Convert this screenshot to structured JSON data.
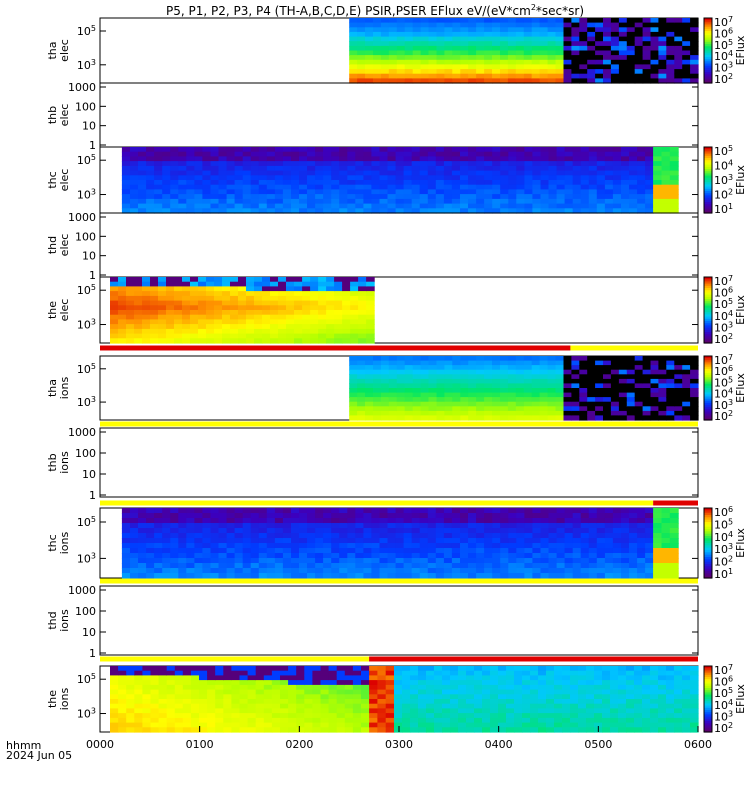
{
  "title": {
    "prefix": "P5, P1, P2, P3, P4 (TH-A,B,C,D,E) PSIR,PSER EFlux eV/(eV*cm",
    "exp": "2",
    "suffix": "*sec*sr)"
  },
  "chart_data": {
    "type": "heatmap",
    "x_unit": "hhmm",
    "date": "2024 Jun 05",
    "xticks": [
      "0000",
      "0100",
      "0200",
      "0300",
      "0400",
      "0500",
      "0600"
    ],
    "xlim": [
      0,
      6
    ],
    "colormap": "rainbow (purple-blue-cyan-green-yellow-orange-red)",
    "panels": [
      {
        "probe": "tha",
        "species": "elec",
        "label": [
          "tha",
          "elec"
        ],
        "yscale": "log",
        "yticks": [
          "10^5",
          "10^3"
        ],
        "has_data": true,
        "cbar_label": "EFlux",
        "cbar_ticks": [
          "10^7",
          "10^6",
          "10^5",
          "10^4",
          "10^3",
          "10^2"
        ],
        "segments": [
          {
            "start": 0.0,
            "end": 2.5,
            "status": "no data"
          },
          {
            "start": 2.5,
            "end": 4.65,
            "status": "spectrogram"
          },
          {
            "start": 4.65,
            "end": 6.0,
            "status": "sparse"
          }
        ]
      },
      {
        "probe": "thb",
        "species": "elec",
        "label": [
          "thb",
          "elec"
        ],
        "yscale": "log",
        "yticks": [
          "1000",
          "100",
          "10",
          "1"
        ],
        "has_data": false
      },
      {
        "probe": "thc",
        "species": "elec",
        "label": [
          "thc",
          "elec"
        ],
        "yscale": "log",
        "yticks": [
          "10^5",
          "10^3"
        ],
        "has_data": true,
        "cbar_label": "EFlux",
        "cbar_ticks": [
          "10^5",
          "10^4",
          "10^3",
          "10^2",
          "10^1"
        ],
        "segments": [
          {
            "start": 0.0,
            "end": 0.22,
            "status": "no data"
          },
          {
            "start": 0.22,
            "end": 5.55,
            "status": "spectrogram"
          },
          {
            "start": 5.55,
            "end": 5.8,
            "status": "burst"
          }
        ]
      },
      {
        "probe": "thd",
        "species": "elec",
        "label": [
          "thd",
          "elec"
        ],
        "yscale": "log",
        "yticks": [
          "1000",
          "100",
          "10",
          "1"
        ],
        "has_data": false
      },
      {
        "probe": "the",
        "species": "elec",
        "label": [
          "the",
          "elec"
        ],
        "yscale": "log",
        "yticks": [
          "10^5",
          "10^3"
        ],
        "has_data": true,
        "cbar_label": "EFlux",
        "cbar_ticks": [
          "10^7",
          "10^6",
          "10^5",
          "10^4",
          "10^3",
          "10^2"
        ],
        "segments": [
          {
            "start": 0.1,
            "end": 2.75,
            "status": "spectrogram"
          }
        ]
      },
      {
        "probe": "tha",
        "species": "ions",
        "label": [
          "tha",
          "ions"
        ],
        "yscale": "log",
        "yticks": [
          "10^5",
          "10^3"
        ],
        "has_data": true,
        "cbar_label": "EFlux",
        "cbar_ticks": [
          "10^7",
          "10^6",
          "10^5",
          "10^4",
          "10^3",
          "10^2"
        ],
        "segments": [
          {
            "start": 2.5,
            "end": 4.65,
            "status": "spectrogram"
          },
          {
            "start": 4.65,
            "end": 6.0,
            "status": "sparse"
          }
        ]
      },
      {
        "probe": "thb",
        "species": "ions",
        "label": [
          "thb",
          "ions"
        ],
        "yscale": "log",
        "yticks": [
          "1000",
          "100",
          "10",
          "1"
        ],
        "has_data": false
      },
      {
        "probe": "thc",
        "species": "ions",
        "label": [
          "thc",
          "ions"
        ],
        "yscale": "log",
        "yticks": [
          "10^5",
          "10^3"
        ],
        "has_data": true,
        "cbar_label": "EFlux",
        "cbar_ticks": [
          "10^6",
          "10^5",
          "10^4",
          "10^3",
          "10^2",
          "10^1"
        ],
        "segments": [
          {
            "start": 0.22,
            "end": 5.55,
            "status": "spectrogram"
          },
          {
            "start": 5.55,
            "end": 5.8,
            "status": "burst"
          }
        ]
      },
      {
        "probe": "thd",
        "species": "ions",
        "label": [
          "thd",
          "ions"
        ],
        "yscale": "log",
        "yticks": [
          "1000",
          "100",
          "10",
          "1"
        ],
        "has_data": false
      },
      {
        "probe": "the",
        "species": "ions",
        "label": [
          "the",
          "ions"
        ],
        "yscale": "log",
        "yticks": [
          "10^5",
          "10^3"
        ],
        "has_data": true,
        "cbar_label": "EFlux",
        "cbar_ticks": [
          "10^7",
          "10^6",
          "10^5",
          "10^4",
          "10^3",
          "10^2"
        ],
        "segments": [
          {
            "start": 0.1,
            "end": 2.7,
            "status": "spectrogram"
          },
          {
            "start": 2.7,
            "end": 2.95,
            "status": "burst"
          },
          {
            "start": 2.95,
            "end": 6.0,
            "status": "spectrogram"
          }
        ]
      }
    ],
    "mode_bars": [
      {
        "after_panel": 4,
        "segments": [
          {
            "start": 0.0,
            "end": 4.72,
            "color": "#e00000"
          },
          {
            "start": 4.72,
            "end": 6.0,
            "color": "#ffff00"
          }
        ]
      },
      {
        "after_panel": 5,
        "segments": [
          {
            "start": 0.0,
            "end": 6.0,
            "color": "#ffff00"
          }
        ]
      },
      {
        "after_panel": 6,
        "segments": [
          {
            "start": 0.0,
            "end": 5.55,
            "color": "#ffff00"
          },
          {
            "start": 5.55,
            "end": 6.0,
            "color": "#e00000"
          }
        ]
      },
      {
        "after_panel": 7,
        "segments": [
          {
            "start": 0.0,
            "end": 6.0,
            "color": "#ffff00"
          }
        ]
      },
      {
        "after_panel": 8,
        "segments": [
          {
            "start": 0.0,
            "end": 2.7,
            "color": "#ffff00"
          },
          {
            "start": 2.7,
            "end": 6.0,
            "color": "#e00000"
          }
        ]
      }
    ]
  }
}
